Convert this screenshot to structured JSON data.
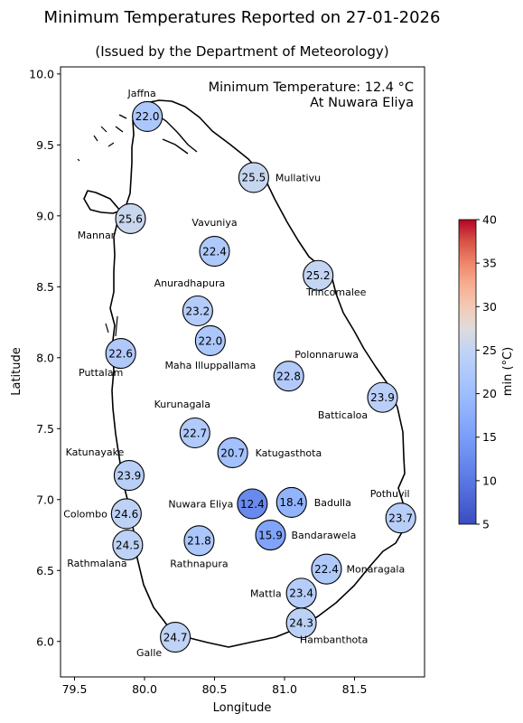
{
  "chart_data": {
    "type": "scatter",
    "title": "Minimum Temperatures Reported on 27-01-2026",
    "subtitle": "(Issued by the Department of Meteorology)",
    "xlabel": "Longitude",
    "ylabel": "Latitude",
    "xlim": [
      79.4,
      82.0
    ],
    "ylim": [
      5.75,
      10.05
    ],
    "xticks": [
      "79.5",
      "80.0",
      "80.5",
      "81.0",
      "81.5"
    ],
    "yticks": [
      "6.0",
      "6.5",
      "7.0",
      "7.5",
      "8.0",
      "8.5",
      "9.0",
      "9.5",
      "10.0"
    ],
    "annotation_line1": "Minimum Temperature: 12.4 °C",
    "annotation_line2": "At Nuwara Eliya",
    "colorbar": {
      "label": "min (°C)",
      "range": [
        5,
        40
      ],
      "ticks": [
        "5",
        "10",
        "15",
        "20",
        "25",
        "30",
        "35",
        "40"
      ],
      "colormap": "coolwarm"
    },
    "stations": [
      {
        "name": "Jaffna",
        "lon": 80.02,
        "lat": 9.7,
        "value": 22.0,
        "value_label": "22.0"
      },
      {
        "name": "Mullativu",
        "lon": 80.78,
        "lat": 9.27,
        "value": 25.5,
        "value_label": "25.5"
      },
      {
        "name": "Mannar",
        "lon": 79.9,
        "lat": 8.98,
        "value": 25.6,
        "value_label": "25.6"
      },
      {
        "name": "Vavuniya",
        "lon": 80.5,
        "lat": 8.75,
        "value": 22.4,
        "value_label": "22.4"
      },
      {
        "name": "Trincomalee",
        "lon": 81.24,
        "lat": 8.58,
        "value": 25.2,
        "value_label": "25.2"
      },
      {
        "name": "Anuradhapura",
        "lon": 80.38,
        "lat": 8.33,
        "value": 23.2,
        "value_label": "23.2"
      },
      {
        "name": "Maha Illuppallama",
        "lon": 80.47,
        "lat": 8.12,
        "value": 22.0,
        "value_label": "22.0"
      },
      {
        "name": "Puttalam",
        "lon": 79.83,
        "lat": 8.03,
        "value": 22.6,
        "value_label": "22.6"
      },
      {
        "name": "Polonnaruwa",
        "lon": 81.03,
        "lat": 7.87,
        "value": 22.8,
        "value_label": "22.8"
      },
      {
        "name": "Batticaloa",
        "lon": 81.7,
        "lat": 7.72,
        "value": 23.9,
        "value_label": "23.9"
      },
      {
        "name": "Kurunagala",
        "lon": 80.36,
        "lat": 7.47,
        "value": 22.7,
        "value_label": "22.7"
      },
      {
        "name": "Katugasthota",
        "lon": 80.63,
        "lat": 7.33,
        "value": 20.7,
        "value_label": "20.7"
      },
      {
        "name": "Katunayake",
        "lon": 79.89,
        "lat": 7.17,
        "value": 23.9,
        "value_label": "23.9"
      },
      {
        "name": "Nuwara Eliya",
        "lon": 80.77,
        "lat": 6.97,
        "value": 12.4,
        "value_label": "12.4"
      },
      {
        "name": "Badulla",
        "lon": 81.05,
        "lat": 6.98,
        "value": 18.4,
        "value_label": "18.4"
      },
      {
        "name": "Colombo",
        "lon": 79.87,
        "lat": 6.9,
        "value": 24.6,
        "value_label": "24.6"
      },
      {
        "name": "Pothuvil",
        "lon": 81.83,
        "lat": 6.87,
        "value": 23.7,
        "value_label": "23.7"
      },
      {
        "name": "Bandarawela",
        "lon": 80.9,
        "lat": 6.75,
        "value": 15.9,
        "value_label": "15.9"
      },
      {
        "name": "Rathnapura",
        "lon": 80.39,
        "lat": 6.71,
        "value": 21.8,
        "value_label": "21.8"
      },
      {
        "name": "Rathmalana",
        "lon": 79.88,
        "lat": 6.68,
        "value": 24.5,
        "value_label": "24.5"
      },
      {
        "name": "Monaragala",
        "lon": 81.3,
        "lat": 6.51,
        "value": 22.4,
        "value_label": "22.4"
      },
      {
        "name": "Mattla",
        "lon": 81.12,
        "lat": 6.34,
        "value": 23.4,
        "value_label": "23.4"
      },
      {
        "name": "Hambanthota",
        "lon": 81.12,
        "lat": 6.13,
        "value": 24.3,
        "value_label": "24.3"
      },
      {
        "name": "Galle",
        "lon": 80.22,
        "lat": 6.03,
        "value": 24.7,
        "value_label": "24.7"
      }
    ]
  }
}
